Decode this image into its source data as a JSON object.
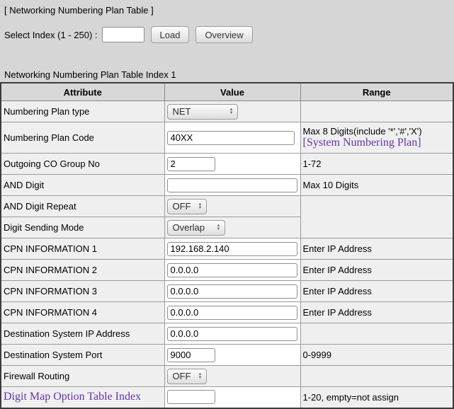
{
  "header": {
    "title": "[ Networking Numbering Plan Table ]",
    "select_index": {
      "label": "Select Index (1 - 250) :",
      "value": "",
      "load_label": "Load",
      "overview_label": "Overview"
    },
    "caption": "Networking Numbering Plan Table Index 1"
  },
  "colors": {
    "page_bg": "#d6d6d6",
    "cell_bg": "#efefef",
    "header_bg": "#d8d8d8",
    "input_bg": "#ffffff",
    "link_purple": "#6633aa",
    "border_inner": "#9a9a9a",
    "border_outer": "#3c3c3c"
  },
  "table": {
    "columns": [
      "Attribute",
      "Value",
      "Range"
    ],
    "rows": [
      {
        "attribute": "Numbering Plan type",
        "control": "select",
        "value": "NET",
        "width": 100,
        "range": ""
      },
      {
        "attribute": "Numbering Plan Code",
        "control": "input",
        "value": "40XX",
        "width": 180,
        "range": "Max 8 Digits(include '*','#','X')",
        "range_link": "[System Numbering Plan]",
        "height": 44
      },
      {
        "attribute": "Outgoing CO Group No",
        "control": "input",
        "value": "2",
        "width": 68,
        "range": "1-72"
      },
      {
        "attribute": "AND Digit",
        "control": "input",
        "value": "",
        "width": 184,
        "range": "Max 10 Digits"
      },
      {
        "attribute": "AND Digit Repeat",
        "control": "select",
        "value": "OFF",
        "width": 56,
        "range": "",
        "range_rowspan": 2
      },
      {
        "attribute": "Digit Sending Mode",
        "control": "select",
        "value": "Overlap",
        "width": 82,
        "range_skip": true
      },
      {
        "attribute": "CPN INFORMATION 1",
        "control": "input",
        "value": "192.168.2.140",
        "width": 184,
        "range": "Enter IP Address"
      },
      {
        "attribute": "CPN INFORMATION 2",
        "control": "input",
        "value": "0.0.0.0",
        "width": 184,
        "range": "Enter IP Address"
      },
      {
        "attribute": "CPN INFORMATION 3",
        "control": "input",
        "value": "0.0.0.0",
        "width": 184,
        "range": "Enter IP Address"
      },
      {
        "attribute": "CPN INFORMATION 4",
        "control": "input",
        "value": "0.0.0.0",
        "width": 184,
        "range": "Enter IP Address"
      },
      {
        "attribute": "Destination System IP Address",
        "control": "input",
        "value": "0.0.0.0",
        "width": 184,
        "range": ""
      },
      {
        "attribute": "Destination System Port",
        "control": "input",
        "value": "9000",
        "width": 68,
        "range": "0-9999"
      },
      {
        "attribute": "Firewall Routing",
        "control": "select",
        "value": "OFF",
        "width": 56,
        "range": ""
      },
      {
        "attribute": "Digit Map Option Table Index",
        "attribute_link": true,
        "control": "input",
        "value": "",
        "width": 68,
        "range": "1-20, empty=not assign"
      }
    ]
  }
}
